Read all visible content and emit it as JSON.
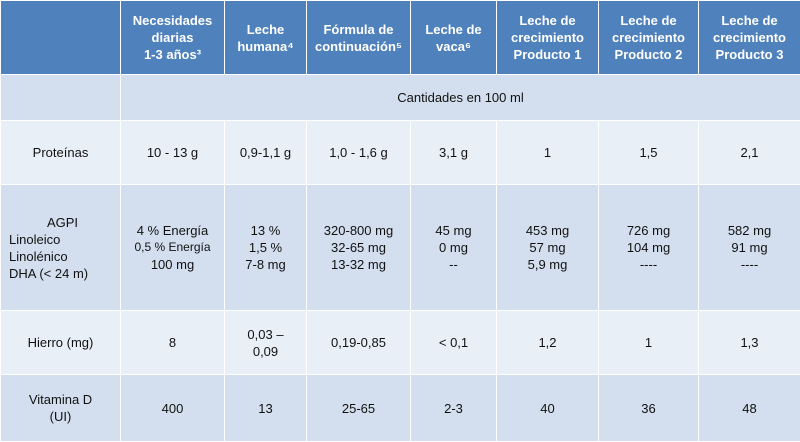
{
  "headers": [
    {
      "lines": [
        ""
      ]
    },
    {
      "lines": [
        "Necesidades",
        "diarias",
        "1-3 años³"
      ]
    },
    {
      "lines": [
        "Leche",
        "humana⁴"
      ]
    },
    {
      "lines": [
        "Fórmula de",
        "continuación⁵"
      ]
    },
    {
      "lines": [
        "Leche de",
        "vaca⁶"
      ]
    },
    {
      "lines": [
        "Leche de",
        "crecimiento",
        "Producto 1"
      ]
    },
    {
      "lines": [
        "Leche de",
        "crecimiento",
        "Producto 2"
      ]
    },
    {
      "lines": [
        "Leche de",
        "crecimiento",
        "Producto 3"
      ]
    }
  ],
  "subheader": "Cantidades en 100 ml",
  "rows": [
    {
      "label": [
        "Proteínas"
      ],
      "cells": [
        [
          "10 - 13 g"
        ],
        [
          "0,9-1,1 g"
        ],
        [
          "1,0 - 1,6 g"
        ],
        [
          "3,1 g"
        ],
        [
          "1"
        ],
        [
          "1,5"
        ],
        [
          "2,1"
        ]
      ]
    },
    {
      "label": [
        "AGPI",
        "Linoleico",
        "Linolénico",
        "DHA (< 24 m)"
      ],
      "cells": [
        [
          "4 % Energía",
          "0,5 % Energía",
          "100 mg"
        ],
        [
          "13 %",
          "1,5 %",
          "7-8 mg"
        ],
        [
          "320-800 mg",
          "32-65 mg",
          "13-32 mg"
        ],
        [
          "45 mg",
          "0 mg",
          "--"
        ],
        [
          "453 mg",
          "57 mg",
          "5,9 mg"
        ],
        [
          "726 mg",
          "104 mg",
          "----"
        ],
        [
          "582 mg",
          "91 mg",
          "----"
        ]
      ]
    },
    {
      "label": [
        "Hierro (mg)"
      ],
      "cells": [
        [
          "8"
        ],
        [
          "0,03 –",
          "0,09"
        ],
        [
          "0,19-0,85"
        ],
        [
          "< 0,1"
        ],
        [
          "1,2"
        ],
        [
          "1"
        ],
        [
          "1,3"
        ]
      ]
    },
    {
      "label": [
        "Vitamina D",
        "(UI)"
      ],
      "cells": [
        [
          "400"
        ],
        [
          "13"
        ],
        [
          "25-65"
        ],
        [
          "2-3"
        ],
        [
          "40"
        ],
        [
          "36"
        ],
        [
          "48"
        ]
      ]
    }
  ]
}
